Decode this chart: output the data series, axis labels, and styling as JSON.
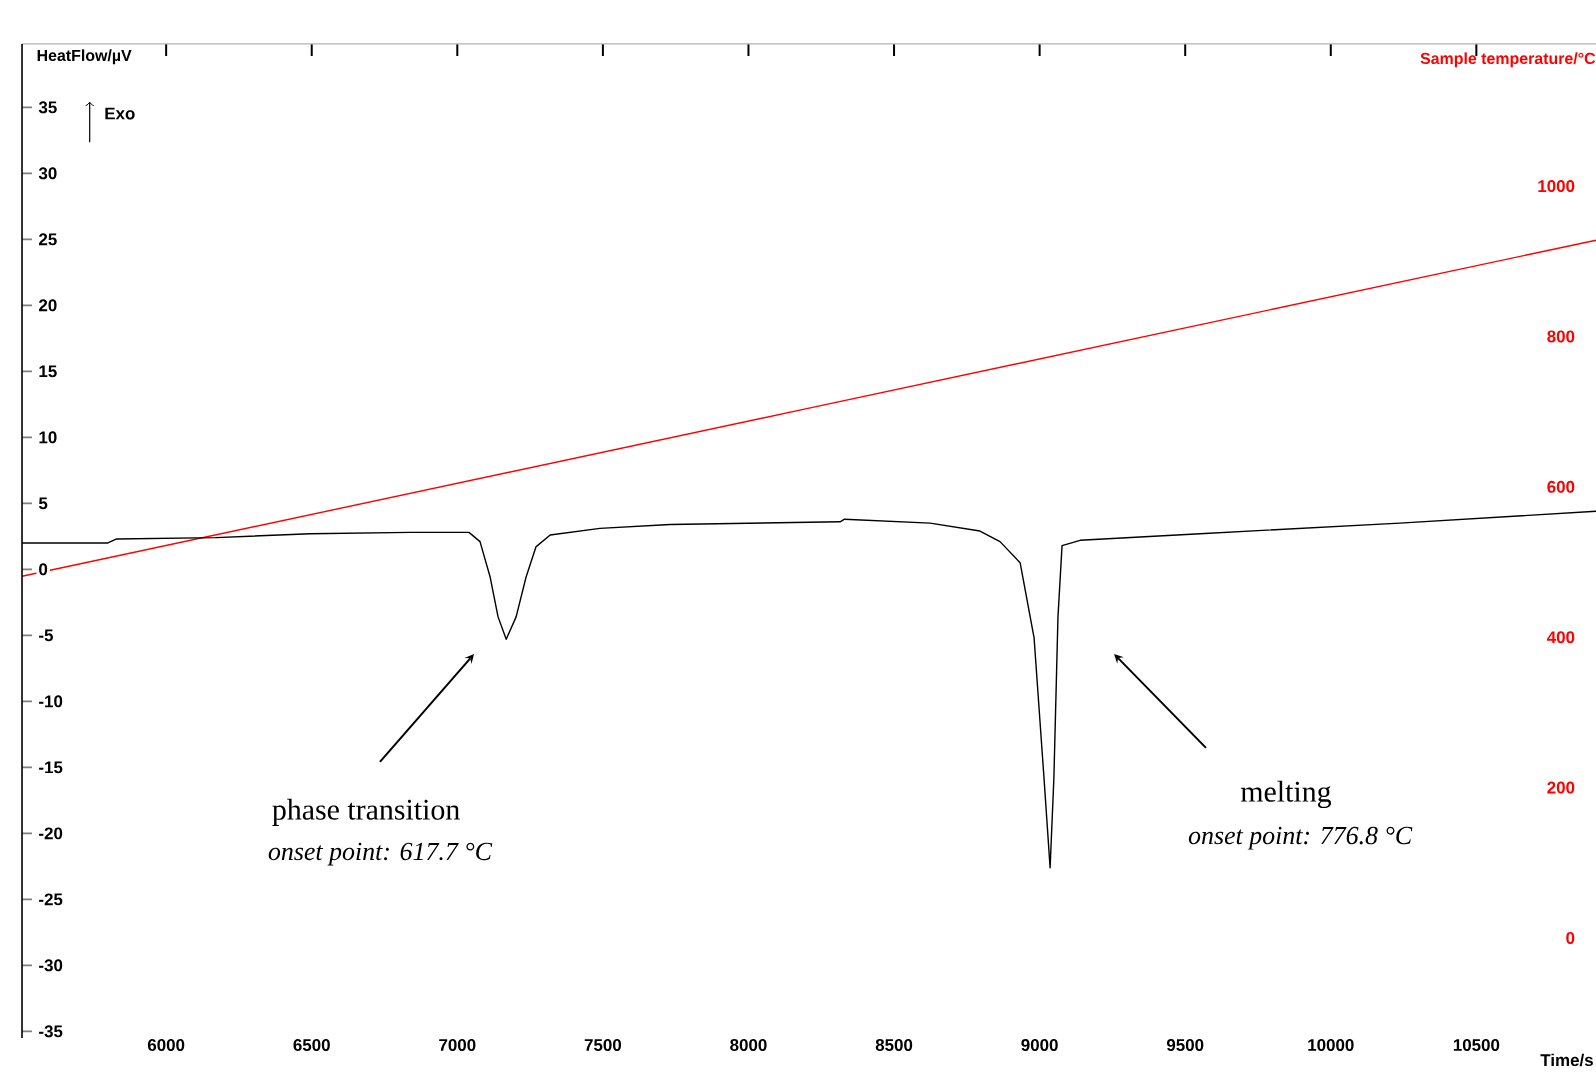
{
  "chart_data": {
    "type": "line",
    "xlabel": "Time/s",
    "ylabel": "HeatFlow/µV",
    "y2label": "Sample temperature/°C",
    "xlim": [
      5505,
      10911
    ],
    "ylim": [
      -35.5,
      39.8
    ],
    "y2lim": [
      -133,
      1189
    ],
    "xticks": [
      6000,
      6500,
      7000,
      7500,
      8000,
      8500,
      9000,
      9500,
      10000,
      10500
    ],
    "yticks": [
      -35,
      -30,
      -25,
      -20,
      -15,
      -10,
      -5,
      0,
      5,
      10,
      15,
      20,
      25,
      30,
      35
    ],
    "y2ticks": [
      0,
      200,
      400,
      600,
      800,
      1000
    ],
    "grid": false,
    "series": [
      {
        "color": "#000000",
        "x": [
          5505,
          5800,
          5830,
          6170,
          6495,
          6838,
          7040,
          7078,
          7113,
          7140,
          7168,
          7202,
          7236,
          7270,
          7319,
          7490,
          7731,
          8315,
          8330,
          8624,
          8795,
          8864,
          8933,
          8981,
          9015,
          9036,
          9049,
          9063,
          9077,
          9139,
          9551,
          10237,
          10911
        ],
        "values": [
          2.0,
          2.0,
          2.3,
          2.4,
          2.7,
          2.8,
          2.8,
          2.1,
          -0.6,
          -3.6,
          -5.3,
          -3.6,
          -0.6,
          1.7,
          2.6,
          3.1,
          3.4,
          3.6,
          3.8,
          3.5,
          2.9,
          2.1,
          0.5,
          -5.2,
          -15.8,
          -22.6,
          -15.8,
          -3.6,
          1.8,
          2.2,
          2.7,
          3.5,
          4.4
        ]
      },
      {
        "color": "#ff0000",
        "axis": "y2",
        "x": [
          5505,
          8200,
          10911
        ],
        "values": [
          481,
          704,
          928
        ]
      }
    ],
    "annotations": [
      "Exo",
      "phase transition",
      "onset point: 617.7   °C",
      "melting",
      "onset point: 776.8   °C"
    ]
  }
}
